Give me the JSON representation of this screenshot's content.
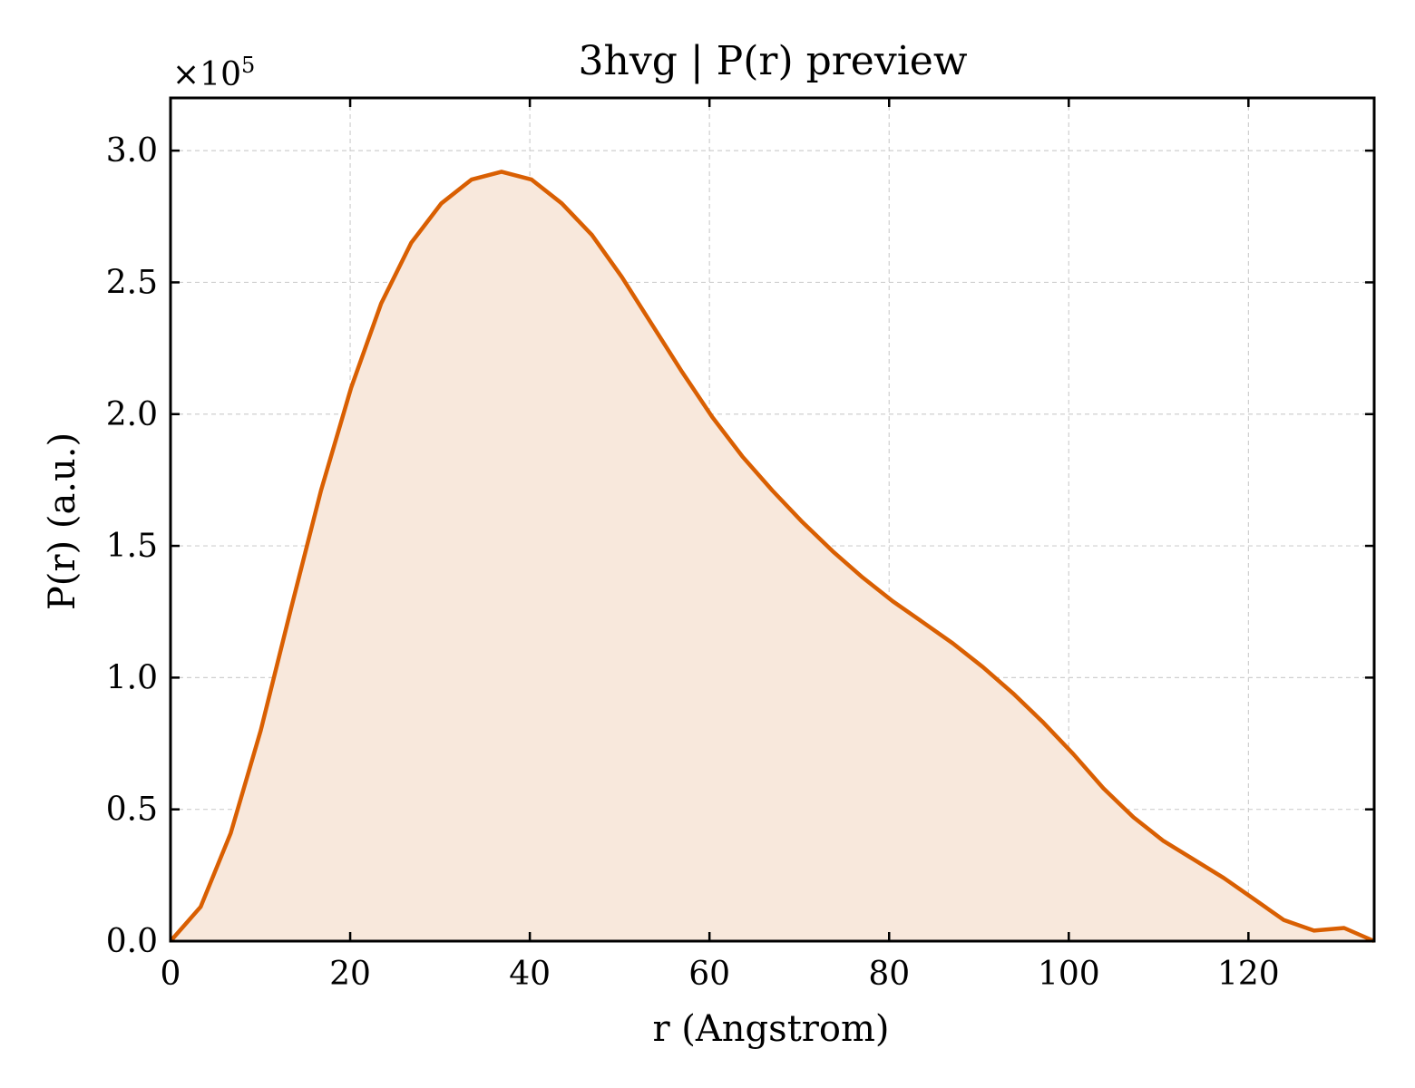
{
  "chart_data": {
    "type": "area",
    "title": "3hvg | P(r) preview",
    "xlabel": "r (Angstrom)",
    "ylabel": "P(r) (a.u.)",
    "y_multiplier_label": "×10",
    "y_multiplier_exponent": "5",
    "xlim": [
      0,
      134
    ],
    "ylim": [
      0,
      3.2
    ],
    "x_ticks": [
      0,
      20,
      40,
      60,
      80,
      100,
      120
    ],
    "x_tick_labels": [
      "0",
      "20",
      "40",
      "60",
      "80",
      "100",
      "120"
    ],
    "y_ticks": [
      0.0,
      0.5,
      1.0,
      1.5,
      2.0,
      2.5,
      3.0
    ],
    "y_tick_labels": [
      "0.0",
      "0.5",
      "1.0",
      "1.5",
      "2.0",
      "2.5",
      "3.0"
    ],
    "grid": true,
    "line_color": "#d95f02",
    "fill_color": "#f8e8dc",
    "series": [
      {
        "x": [
          0,
          3.35,
          6.7,
          10.05,
          13.4,
          16.75,
          20.1,
          23.45,
          26.8,
          30.15,
          33.5,
          36.85,
          40.2,
          43.55,
          46.9,
          50.25,
          53.6,
          56.95,
          60.3,
          63.65,
          67.0,
          70.35,
          73.7,
          77.05,
          80.4,
          83.75,
          87.1,
          90.45,
          93.8,
          97.15,
          100.5,
          103.85,
          107.2,
          110.55,
          113.9,
          117.25,
          120.6,
          123.95,
          127.3,
          130.65,
          134.0
        ],
        "y": [
          0.0,
          0.13,
          0.41,
          0.8,
          1.26,
          1.71,
          2.1,
          2.42,
          2.65,
          2.8,
          2.89,
          2.92,
          2.89,
          2.8,
          2.68,
          2.52,
          2.34,
          2.16,
          1.99,
          1.84,
          1.71,
          1.59,
          1.48,
          1.38,
          1.29,
          1.21,
          1.13,
          1.04,
          0.94,
          0.83,
          0.71,
          0.58,
          0.47,
          0.38,
          0.31,
          0.24,
          0.16,
          0.08,
          0.04,
          0.05,
          0.0
        ]
      }
    ]
  }
}
